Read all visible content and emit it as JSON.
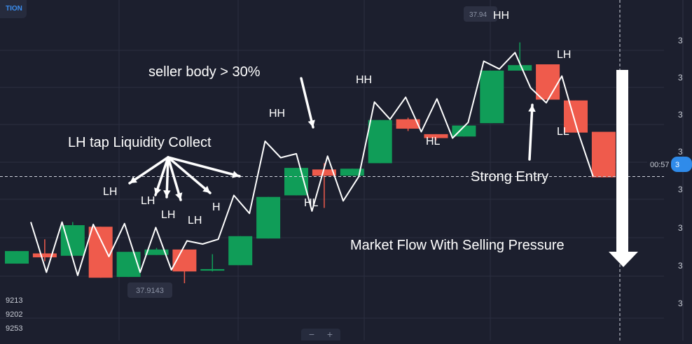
{
  "chart_data": {
    "type": "candlestick",
    "candles": [
      {
        "color": "green",
        "open": 9.8,
        "close": 11.4,
        "high": 11.4,
        "low": 9.8
      },
      {
        "color": "red",
        "open": 11.1,
        "close": 10.6,
        "high": 12.9,
        "low": 10.1
      },
      {
        "color": "green",
        "open": 10.8,
        "close": 14.7,
        "high": 15.1,
        "low": 10.8
      },
      {
        "color": "red",
        "open": 14.5,
        "close": 8.0,
        "high": 14.5,
        "low": 8.0
      },
      {
        "color": "green",
        "open": 8.1,
        "close": 11.3,
        "high": 11.3,
        "low": 8.1
      },
      {
        "color": "green",
        "open": 10.9,
        "close": 11.6,
        "high": 11.8,
        "low": 10.9
      },
      {
        "color": "red",
        "open": 11.6,
        "close": 8.8,
        "high": 11.6,
        "low": 7.3
      },
      {
        "color": "green",
        "open": 8.9,
        "close": 9.1,
        "high": 11.0,
        "low": 8.8
      },
      {
        "color": "green",
        "open": 9.6,
        "close": 13.3,
        "high": 13.3,
        "low": 9.6
      },
      {
        "color": "green",
        "open": 13.0,
        "close": 18.3,
        "high": 18.3,
        "low": 13.0
      },
      {
        "color": "green",
        "open": 18.5,
        "close": 22.0,
        "high": 22.0,
        "low": 18.5
      },
      {
        "color": "red",
        "open": 21.8,
        "close": 21.0,
        "high": 22.6,
        "low": 16.9
      },
      {
        "color": "green",
        "open": 21.0,
        "close": 21.9,
        "high": 21.9,
        "low": 21.0
      },
      {
        "color": "green",
        "open": 22.6,
        "close": 28.1,
        "high": 28.1,
        "low": 22.6
      },
      {
        "color": "red",
        "open": 28.2,
        "close": 27.0,
        "high": 28.4,
        "low": 26.7
      },
      {
        "color": "red",
        "open": 26.3,
        "close": 25.8,
        "high": 26.3,
        "low": 25.5
      },
      {
        "color": "green",
        "open": 26.0,
        "close": 27.4,
        "high": 27.4,
        "low": 26.0
      },
      {
        "color": "green",
        "open": 27.7,
        "close": 34.4,
        "high": 34.4,
        "low": 27.7
      },
      {
        "color": "green",
        "open": 34.4,
        "close": 35.1,
        "high": 38.0,
        "low": 34.4
      },
      {
        "color": "red",
        "open": 35.2,
        "close": 30.7,
        "high": 35.2,
        "low": 30.7
      },
      {
        "color": "red",
        "open": 30.6,
        "close": 26.5,
        "high": 30.6,
        "low": 26.5
      },
      {
        "color": "red",
        "open": 26.6,
        "close": 20.8,
        "high": 26.6,
        "low": 20.8
      }
    ],
    "flow_line_y": [
      15.1,
      8.7,
      15.1,
      8.3,
      14.8,
      10.7,
      14.9,
      8.7,
      14.4,
      9.0,
      12.7,
      12.3,
      12.9,
      18.5,
      16.2,
      25.4,
      23.3,
      23.8,
      16.5,
      23.5,
      17.8,
      20.9,
      30.4,
      28.2,
      31.0,
      26.6,
      30.8,
      25.8,
      27.8,
      35.6,
      34.6,
      36.7,
      32.2,
      30.3,
      33.7,
      26.8,
      20.9
    ],
    "current_price_y": 20.9,
    "ylim": [
      0,
      43.4
    ],
    "price_labels": {
      "low_label": "37.9143",
      "high_label": "37.94",
      "time_label": "00:57",
      "price_tag_partial": "3",
      "right_axis_ticks": [
        "3",
        "3",
        "3",
        "3",
        "3",
        "3",
        "3",
        "3",
        "3"
      ]
    },
    "left_values": [
      "9213",
      "9202",
      "9253"
    ],
    "annotations": {
      "title_like": "seller body > 30%",
      "liquidity": "LH tap Liquidity Collect",
      "strong_entry": "Strong Entry",
      "market_flow": "Market Flow With Selling Pressure",
      "swing_labels": [
        "LH",
        "LH",
        "LH",
        "LH",
        "H",
        "HH",
        "HL",
        "HH",
        "HL",
        "HH",
        "LH",
        "LL"
      ]
    },
    "colors": {
      "green": "#109d58",
      "red": "#ef5b4c",
      "line": "#ffffff",
      "grid": "#2b2f40"
    }
  },
  "ui": {
    "badge_text": "TION",
    "zoom_minus": "−",
    "zoom_plus": "+"
  }
}
